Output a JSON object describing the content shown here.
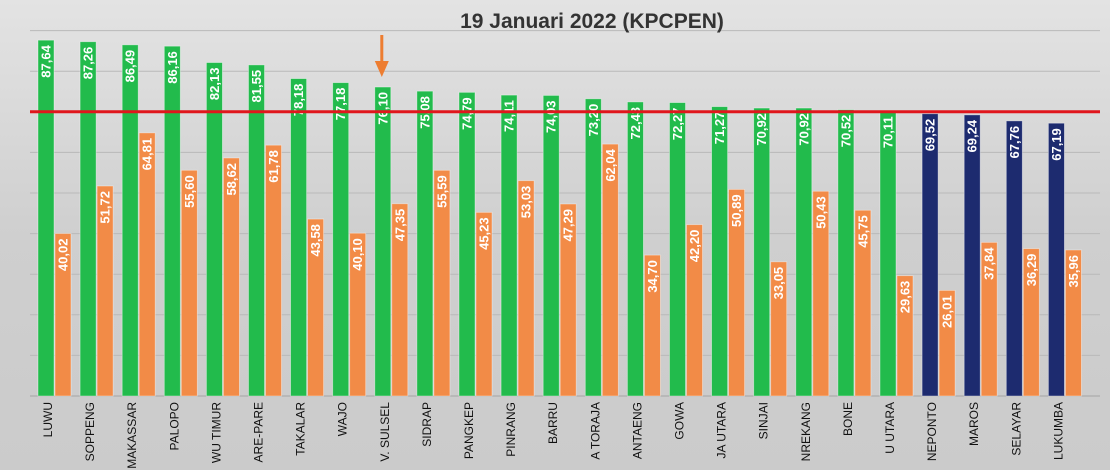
{
  "chart_data": {
    "type": "bar",
    "title": "19 Januari 2022 (KPCPEN)",
    "categories": [
      "LUWU",
      "SOPPENG",
      "MAKASSAR",
      "PALOPO",
      "WU TIMUR",
      "ARE-PARE",
      "TAKALAR",
      "WAJO",
      "V. SULSEL",
      "SIDRAP",
      "PANGKEP",
      "PINRANG",
      "BARRU",
      "A TORAJA",
      "ANTAENG",
      "GOWA",
      "JA UTARA",
      "SINJAI",
      "NREKANG",
      "BONE",
      "U UTARA",
      "NEPONTO",
      "MAROS",
      "SELAYAR",
      "LUKUMBA"
    ],
    "series": [
      {
        "values": [
          87.64,
          87.26,
          86.49,
          86.16,
          82.13,
          81.55,
          78.18,
          77.18,
          76.1,
          75.08,
          74.79,
          74.11,
          74.03,
          73.2,
          72.43,
          72.27,
          71.27,
          70.92,
          70.92,
          70.52,
          70.11,
          69.52,
          69.24,
          67.76,
          67.19
        ],
        "labels": [
          "87,64",
          "87,26",
          "86,49",
          "86,16",
          "82,13",
          "81,55",
          "78,18",
          "77,18",
          "76,10",
          "75,08",
          "74,79",
          "74,11",
          "74,03",
          "73,20",
          "72,43",
          "72,27",
          "71,27",
          "70,92",
          "70,92",
          "70,52",
          "70,11",
          "69,52",
          "69,24",
          "67,76",
          "67,19"
        ],
        "colors": [
          "#22bb4c",
          "#22bb4c",
          "#22bb4c",
          "#22bb4c",
          "#22bb4c",
          "#22bb4c",
          "#22bb4c",
          "#22bb4c",
          "#22bb4c",
          "#22bb4c",
          "#22bb4c",
          "#22bb4c",
          "#22bb4c",
          "#22bb4c",
          "#22bb4c",
          "#22bb4c",
          "#22bb4c",
          "#22bb4c",
          "#22bb4c",
          "#22bb4c",
          "#22bb4c",
          "#1d2b6f",
          "#1d2b6f",
          "#1d2b6f",
          "#1d2b6f"
        ]
      },
      {
        "values": [
          40.02,
          51.72,
          64.81,
          55.6,
          58.62,
          61.78,
          43.58,
          40.1,
          47.35,
          55.59,
          45.23,
          53.03,
          47.29,
          62.04,
          34.7,
          42.2,
          50.89,
          33.05,
          50.43,
          45.75,
          29.63,
          26.01,
          37.84,
          36.29,
          35.96
        ],
        "labels": [
          "40,02",
          "51,72",
          "64,81",
          "55,60",
          "58,62",
          "61,78",
          "43,58",
          "40,10",
          "47,35",
          "55,59",
          "45,23",
          "53,03",
          "47,29",
          "62,04",
          "34,70",
          "42,20",
          "50,89",
          "33,05",
          "50,43",
          "45,75",
          "29,63",
          "26,01",
          "37,84",
          "36,29",
          "35,96"
        ],
        "color": "#f28b47"
      }
    ],
    "ylim": [
      0,
      100
    ],
    "grid": true,
    "reference_line": {
      "value": 70,
      "color": "#e0161c"
    },
    "arrow_marker": {
      "icon": "arrow-down-icon",
      "category_index": 8,
      "color": "#ed7d31"
    }
  }
}
